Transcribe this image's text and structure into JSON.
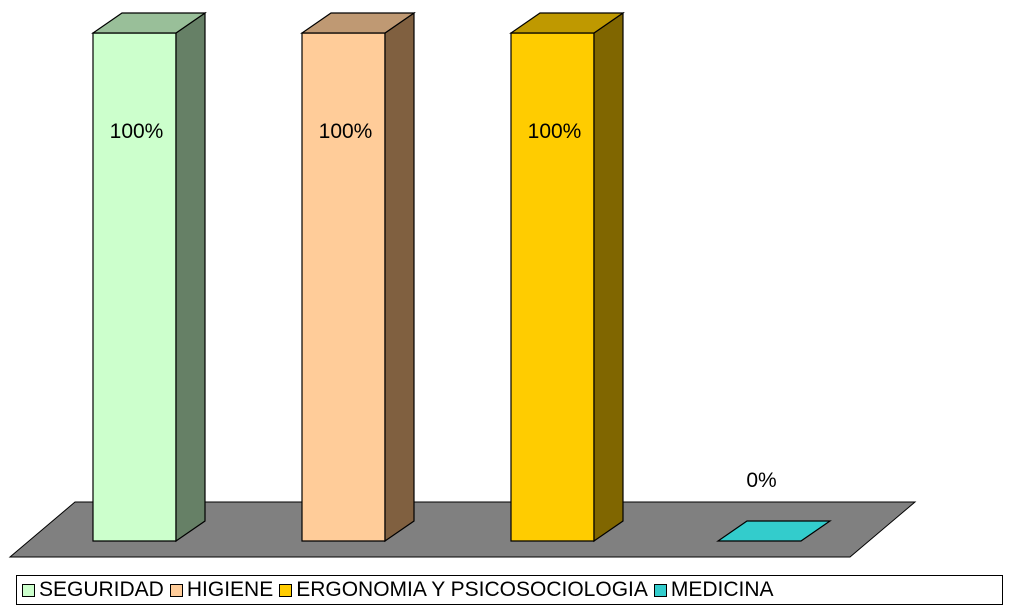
{
  "chart_data": {
    "type": "bar",
    "categories": [
      "SEGURIDAD",
      "HIGIENE",
      "ERGONOMIA Y PSICOSOCIOLOGIA",
      "MEDICINA"
    ],
    "values": [
      100,
      100,
      100,
      0
    ],
    "value_labels": [
      "100%",
      "100%",
      "100%",
      "0%"
    ],
    "unit": "%",
    "ylim": [
      0,
      100
    ],
    "grid": false,
    "three_d": true,
    "legend_position": "bottom",
    "colors": {
      "front": [
        "#CCFFCC",
        "#FFCC99",
        "#FFCC00",
        "#33CCCC"
      ],
      "side": [
        "#668066",
        "#806040",
        "#806600",
        "#1A6666"
      ],
      "top": [
        "#99BF99",
        "#BF9973",
        "#BF9900",
        "#269999"
      ],
      "floor": "#808080"
    }
  }
}
